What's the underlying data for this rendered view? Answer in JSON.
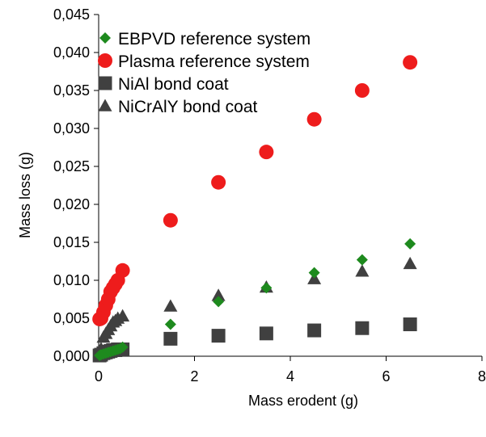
{
  "chart_data": {
    "type": "scatter",
    "title": "",
    "xlabel": "Mass erodent (g)",
    "ylabel": "Mass loss (g)",
    "xlim": [
      0,
      8
    ],
    "ylim": [
      0,
      0.045
    ],
    "x_ticks": [
      0,
      2,
      4,
      6,
      8
    ],
    "x_tick_labels": [
      "0",
      "2",
      "4",
      "6",
      "8"
    ],
    "y_ticks": [
      0,
      0.005,
      0.01,
      0.015,
      0.02,
      0.025,
      0.03,
      0.035,
      0.04,
      0.045
    ],
    "y_tick_labels": [
      "0,000",
      "0,005",
      "0,010",
      "0,015",
      "0,020",
      "0,025",
      "0,030",
      "0,035",
      "0,040",
      "0,045"
    ],
    "grid": false,
    "legend_position": "top-left",
    "series": [
      {
        "name": "EBPVD reference system",
        "marker": "diamond",
        "color": "#1e8a1e",
        "points": [
          [
            0.02,
            0.0001
          ],
          [
            0.05,
            0.0002
          ],
          [
            0.1,
            0.0003
          ],
          [
            0.15,
            0.0004
          ],
          [
            0.2,
            0.0005
          ],
          [
            0.25,
            0.0006
          ],
          [
            0.3,
            0.0007
          ],
          [
            0.35,
            0.0008
          ],
          [
            0.4,
            0.0009
          ],
          [
            0.45,
            0.001
          ],
          [
            0.5,
            0.0012
          ],
          [
            1.5,
            0.0042
          ],
          [
            2.5,
            0.0072
          ],
          [
            3.5,
            0.009
          ],
          [
            4.5,
            0.011
          ],
          [
            5.5,
            0.0127
          ],
          [
            6.5,
            0.0148
          ]
        ]
      },
      {
        "name": "Plasma reference system",
        "marker": "circle",
        "color": "#ee1c1c",
        "points": [
          [
            0.02,
            0.0049
          ],
          [
            0.05,
            0.005
          ],
          [
            0.1,
            0.0058
          ],
          [
            0.15,
            0.0067
          ],
          [
            0.2,
            0.0075
          ],
          [
            0.25,
            0.0085
          ],
          [
            0.3,
            0.009
          ],
          [
            0.35,
            0.0095
          ],
          [
            0.4,
            0.01
          ],
          [
            0.5,
            0.0113
          ],
          [
            1.5,
            0.0179
          ],
          [
            2.5,
            0.0229
          ],
          [
            3.5,
            0.0269
          ],
          [
            4.5,
            0.0312
          ],
          [
            5.5,
            0.035
          ],
          [
            6.5,
            0.0387
          ]
        ]
      },
      {
        "name": "NiAl bond coat",
        "marker": "square",
        "color": "#404040",
        "points": [
          [
            0.02,
            0.0001
          ],
          [
            0.05,
            0.0002
          ],
          [
            0.1,
            0.0004
          ],
          [
            0.15,
            0.0005
          ],
          [
            0.2,
            0.0006
          ],
          [
            0.25,
            0.0007
          ],
          [
            0.3,
            0.0008
          ],
          [
            0.35,
            0.0008
          ],
          [
            0.4,
            0.0009
          ],
          [
            0.45,
            0.0009
          ],
          [
            0.5,
            0.0009
          ],
          [
            1.5,
            0.0023
          ],
          [
            2.5,
            0.0027
          ],
          [
            3.5,
            0.003
          ],
          [
            4.5,
            0.0034
          ],
          [
            5.5,
            0.0037
          ],
          [
            6.5,
            0.0042
          ]
        ]
      },
      {
        "name": "NiCrAlY bond coat",
        "marker": "triangle",
        "color": "#404040",
        "points": [
          [
            0.02,
            0.0005
          ],
          [
            0.05,
            0.001
          ],
          [
            0.1,
            0.0025
          ],
          [
            0.15,
            0.003
          ],
          [
            0.2,
            0.0035
          ],
          [
            0.25,
            0.004
          ],
          [
            0.3,
            0.0045
          ],
          [
            0.35,
            0.0047
          ],
          [
            0.4,
            0.005
          ],
          [
            0.5,
            0.0053
          ],
          [
            1.5,
            0.0066
          ],
          [
            2.5,
            0.008
          ],
          [
            3.5,
            0.0091
          ],
          [
            4.5,
            0.0102
          ],
          [
            5.5,
            0.0112
          ],
          [
            6.5,
            0.0122
          ]
        ]
      }
    ]
  }
}
